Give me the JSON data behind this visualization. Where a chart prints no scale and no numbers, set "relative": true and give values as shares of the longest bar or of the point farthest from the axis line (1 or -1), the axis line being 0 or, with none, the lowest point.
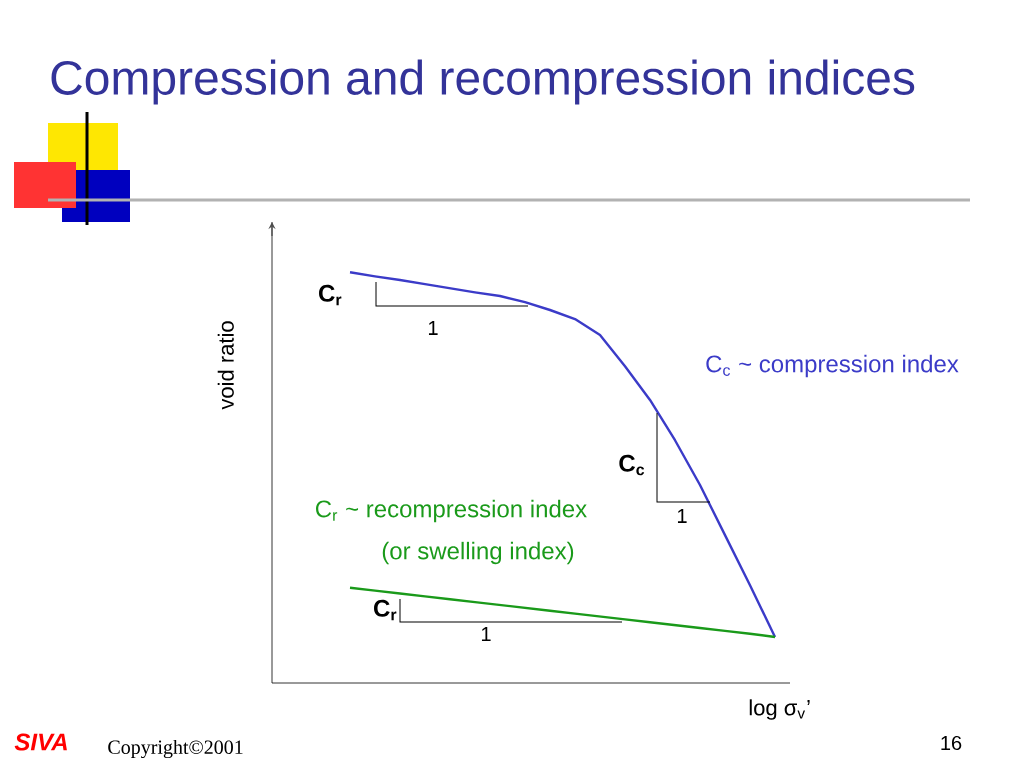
{
  "chart_data": {
    "type": "line",
    "title": "Compression and recompression indices",
    "xlabel": "log σ$_{v}$’",
    "ylabel": "void ratio",
    "relative": true,
    "marker": "none",
    "line_style": "solid",
    "categories": [
      null,
      null,
      null,
      null,
      null,
      null,
      null,
      null,
      null,
      null,
      null,
      null,
      null,
      null,
      null,
      null,
      null,
      null
    ],
    "series": [
      {
        "color": "#3b3bc8",
        "values": [
          1.0,
          0.99,
          0.981,
          0.971,
          0.961,
          0.951,
          0.942,
          0.927,
          0.908,
          0.886,
          0.847,
          0.771,
          0.689,
          0.591,
          0.482,
          0.36,
          0.238,
          0.112
        ]
      },
      {
        "color": "#1a9a1a",
        "values": [
          0.232,
          0.225,
          0.218,
          0.211,
          0.204,
          0.197,
          0.19,
          0.183,
          0.176,
          0.169,
          0.162,
          0.155,
          0.148,
          0.141,
          0.134,
          0.127,
          0.12,
          0.112
        ]
      }
    ],
    "annotations": [
      "C$_{r}$",
      "1",
      "C$_{c}$ ~ compression index",
      "C$_{c}$",
      "1",
      "C$_{r}$ ~ recompression index",
      "(or swelling index)",
      "C$_{r}$",
      "1",
      "SIVA",
      "Copyright©2001",
      "16"
    ]
  }
}
